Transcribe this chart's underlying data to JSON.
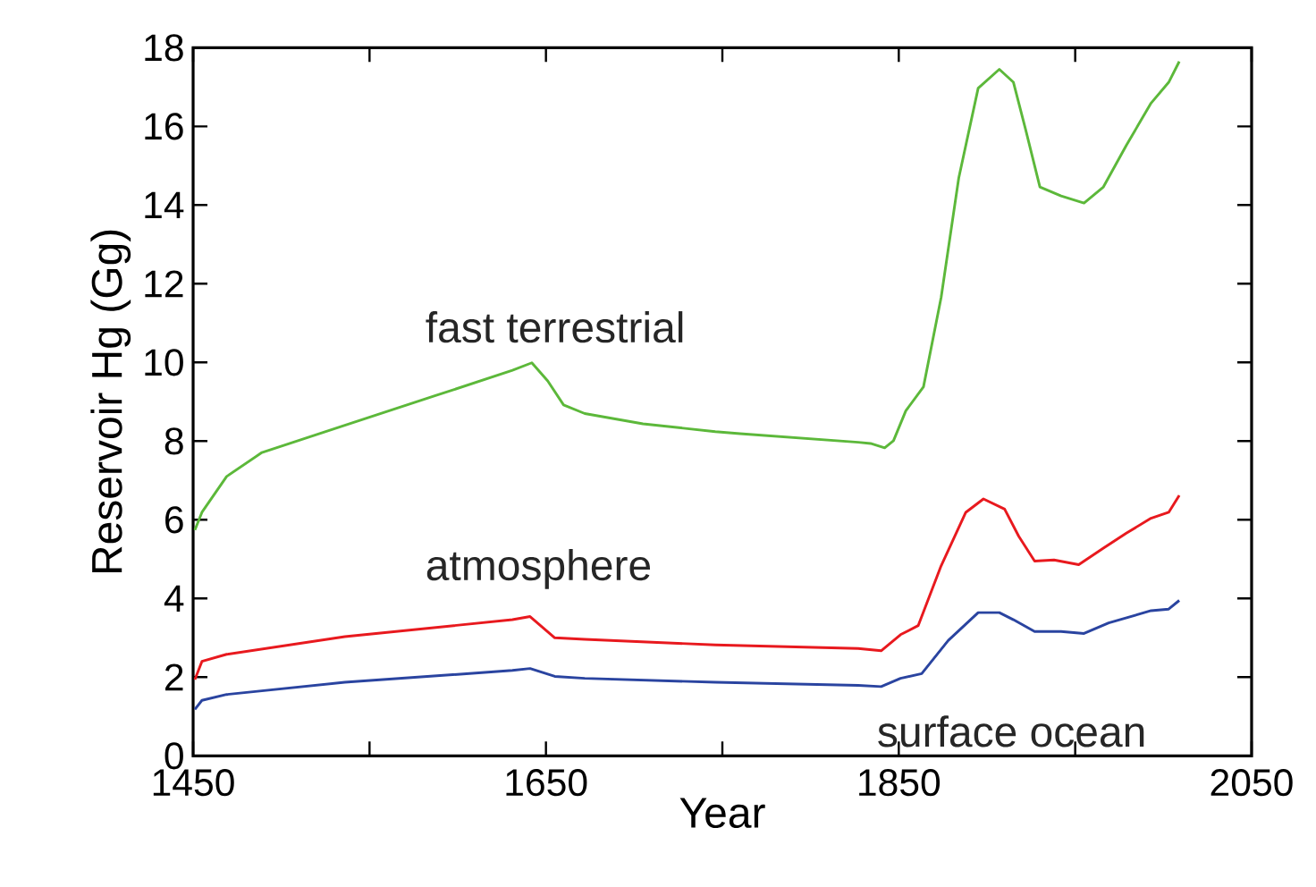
{
  "chart_data": {
    "type": "line",
    "xlabel": "Year",
    "ylabel": "Reservoir Hg (Gg)",
    "xlim": [
      1450,
      2050
    ],
    "ylim": [
      0,
      18
    ],
    "xticks": [
      1450,
      {
        "value": 1550,
        "label": null
      },
      1650,
      {
        "value": 1750,
        "label": null
      },
      1850,
      {
        "value": 1950,
        "label": null
      },
      2050
    ],
    "yticks": [
      0,
      2,
      4,
      6,
      8,
      10,
      12,
      14,
      16,
      18
    ],
    "grid": false,
    "legend": false,
    "marker": "none",
    "line_style": "solid",
    "series": [
      {
        "name": "fast terrestrial",
        "color": "#5cb83a",
        "x": [
          1451,
          1455,
          1469,
          1489,
          1536,
          1587,
          1631,
          1642,
          1651,
          1660,
          1672,
          1705,
          1746,
          1760,
          1827,
          1834,
          1842,
          1847,
          1854,
          1864,
          1874,
          1884,
          1895,
          1907,
          1915,
          1922,
          1930,
          1942,
          1955,
          1966,
          1979,
          1993,
          2003,
          2009
        ],
        "values": [
          5.74,
          6.19,
          7.1,
          7.71,
          8.4,
          9.15,
          9.8,
          9.99,
          9.53,
          8.92,
          8.7,
          8.44,
          8.24,
          8.19,
          7.97,
          7.94,
          7.83,
          8.01,
          8.77,
          9.38,
          11.65,
          14.69,
          16.97,
          17.45,
          17.12,
          15.9,
          14.46,
          14.23,
          14.05,
          14.46,
          15.52,
          16.59,
          17.12,
          17.65
        ]
      },
      {
        "name": "atmosphere",
        "color": "#e8191e",
        "x": [
          1451,
          1455,
          1469,
          1536,
          1631,
          1641,
          1655,
          1672,
          1746,
          1827,
          1840,
          1851,
          1861,
          1874,
          1888,
          1898,
          1910,
          1918,
          1927,
          1938,
          1952,
          1966,
          1979,
          1993,
          2003,
          2009
        ],
        "values": [
          1.94,
          2.4,
          2.58,
          3.03,
          3.46,
          3.54,
          3.0,
          2.96,
          2.82,
          2.73,
          2.67,
          3.08,
          3.31,
          4.83,
          6.19,
          6.53,
          6.27,
          5.58,
          4.95,
          4.98,
          4.86,
          5.28,
          5.66,
          6.04,
          6.19,
          6.62
        ]
      },
      {
        "name": "surface ocean",
        "color": "#2a44a0",
        "x": [
          1451,
          1455,
          1469,
          1536,
          1631,
          1641,
          1655,
          1672,
          1746,
          1827,
          1840,
          1851,
          1863,
          1878,
          1895,
          1907,
          1915,
          1927,
          1942,
          1955,
          1969,
          1993,
          2003,
          2009
        ],
        "values": [
          1.18,
          1.41,
          1.56,
          1.87,
          2.17,
          2.22,
          2.02,
          1.97,
          1.87,
          1.79,
          1.76,
          1.97,
          2.09,
          2.93,
          3.64,
          3.64,
          3.46,
          3.16,
          3.16,
          3.11,
          3.38,
          3.69,
          3.73,
          3.95
        ]
      }
    ]
  }
}
